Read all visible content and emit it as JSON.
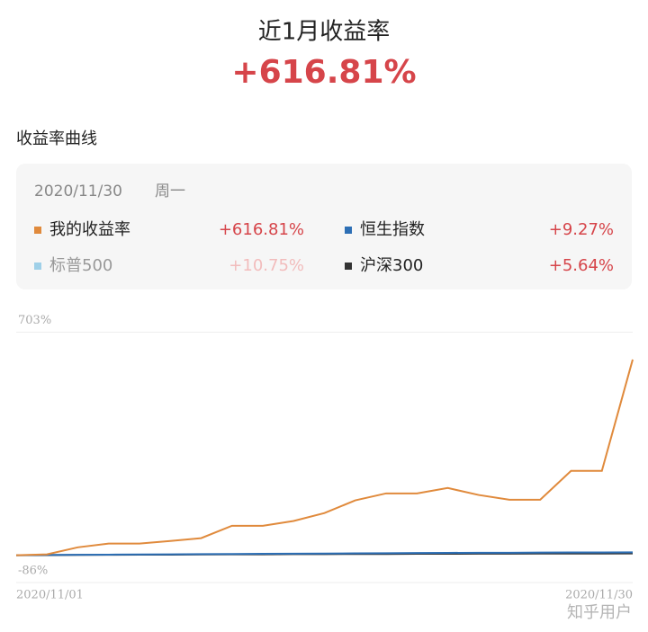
{
  "header": {
    "title": "近1月收益率",
    "value": "+616.81%"
  },
  "section_title": "收益率曲线",
  "card": {
    "date": "2020/11/30",
    "weekday": "周一"
  },
  "watermark": "知乎用户",
  "chart_data": {
    "type": "line",
    "categories": [
      "2020/11/01",
      null,
      null,
      null,
      null,
      null,
      null,
      null,
      null,
      null,
      null,
      null,
      null,
      null,
      null,
      null,
      null,
      null,
      null,
      null,
      "2020/11/30"
    ],
    "series": [
      {
        "name": "我的收益率",
        "value_label": "+616.81%",
        "color": "#e08a3c",
        "enabled": true,
        "values": [
          0,
          3,
          25,
          37,
          37,
          45,
          54,
          93,
          93,
          108,
          133,
          173,
          195,
          195,
          212,
          190,
          175,
          175,
          266,
          266,
          616.81
        ]
      },
      {
        "name": "恒生指数",
        "value_label": "+9.27%",
        "color": "#2d6fb5",
        "enabled": true,
        "values": [
          0,
          1,
          1.5,
          2,
          2.5,
          3,
          3.5,
          4,
          4.5,
          5,
          5.5,
          6,
          6.5,
          7,
          7.5,
          8,
          8,
          8.5,
          8.8,
          9,
          9.27
        ]
      },
      {
        "name": "标普500",
        "value_label": "+10.75%",
        "color": "#9fd0e8",
        "enabled": false
      },
      {
        "name": "沪深300",
        "value_label": "+5.64%",
        "color": "#333333",
        "enabled": true,
        "values": [
          0,
          0.5,
          1,
          1.5,
          2,
          2,
          2.5,
          3,
          3,
          3.5,
          3.5,
          4,
          4,
          4.5,
          4.5,
          5,
          5,
          5.2,
          5.4,
          5.5,
          5.64
        ]
      }
    ],
    "ylim": [
      -86,
      703
    ],
    "yticks": [
      {
        "value": 703,
        "label": "703%"
      },
      {
        "value": -86,
        "label": "-86%"
      }
    ],
    "grid": true
  }
}
